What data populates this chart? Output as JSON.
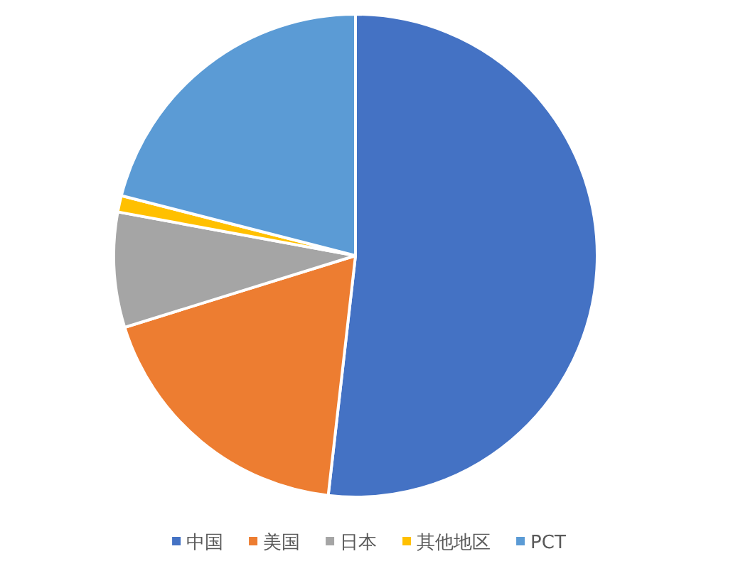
{
  "chart_data": {
    "type": "pie",
    "categories": [
      "中国",
      "美国",
      "日本",
      "其他地区",
      "PCT"
    ],
    "values": [
      51.8,
      18.4,
      7.7,
      1.1,
      21.0
    ],
    "colors": [
      "#4472c4",
      "#ed7d31",
      "#a5a5a5",
      "#ffc000",
      "#5b9bd5"
    ],
    "legend": "bottom"
  }
}
